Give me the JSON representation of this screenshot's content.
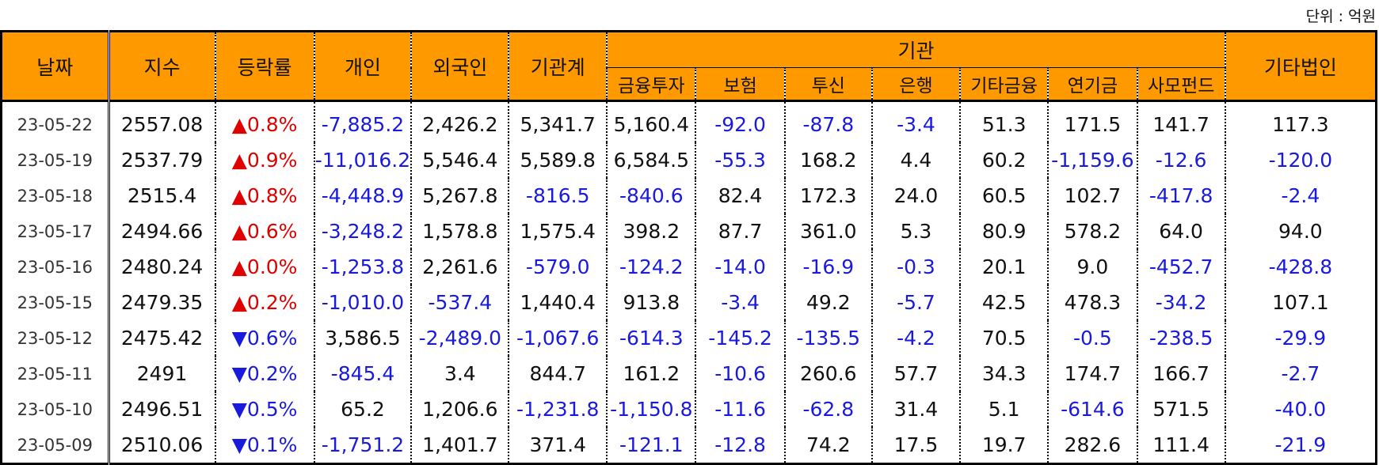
{
  "unit_label": "단위 : 억원",
  "headers": {
    "date": "날짜",
    "index": "지수",
    "change": "등락률",
    "individual": "개인",
    "foreign": "외국인",
    "inst_total": "기관계",
    "institution_group": "기관",
    "institution_sub": [
      "금융투자",
      "보험",
      "투신",
      "은행",
      "기타금융",
      "연기금",
      "사모펀드"
    ],
    "other_corp": "기타법인"
  },
  "colors": {
    "header_bg": "#ff9900",
    "up": "#e00000",
    "negative": "#1a1adc"
  },
  "rows": [
    {
      "date": "23-05-22",
      "index": "2557.08",
      "dir": "up",
      "change": "0.8%",
      "values": [
        "-7,885.2",
        "2,426.2",
        "5,341.7",
        "5,160.4",
        "-92.0",
        "-87.8",
        "-3.4",
        "51.3",
        "171.5",
        "141.7",
        "117.3"
      ]
    },
    {
      "date": "23-05-19",
      "index": "2537.79",
      "dir": "up",
      "change": "0.9%",
      "values": [
        "-11,016.2",
        "5,546.4",
        "5,589.8",
        "6,584.5",
        "-55.3",
        "168.2",
        "4.4",
        "60.2",
        "-1,159.6",
        "-12.6",
        "-120.0"
      ]
    },
    {
      "date": "23-05-18",
      "index": "2515.4",
      "dir": "up",
      "change": "0.8%",
      "values": [
        "-4,448.9",
        "5,267.8",
        "-816.5",
        "-840.6",
        "82.4",
        "172.3",
        "24.0",
        "60.5",
        "102.7",
        "-417.8",
        "-2.4"
      ]
    },
    {
      "date": "23-05-17",
      "index": "2494.66",
      "dir": "up",
      "change": "0.6%",
      "values": [
        "-3,248.2",
        "1,578.8",
        "1,575.4",
        "398.2",
        "87.7",
        "361.0",
        "5.3",
        "80.9",
        "578.2",
        "64.0",
        "94.0"
      ]
    },
    {
      "date": "23-05-16",
      "index": "2480.24",
      "dir": "up",
      "change": "0.0%",
      "values": [
        "-1,253.8",
        "2,261.6",
        "-579.0",
        "-124.2",
        "-14.0",
        "-16.9",
        "-0.3",
        "20.1",
        "9.0",
        "-452.7",
        "-428.8"
      ]
    },
    {
      "date": "23-05-15",
      "index": "2479.35",
      "dir": "up",
      "change": "0.2%",
      "values": [
        "-1,010.0",
        "-537.4",
        "1,440.4",
        "913.8",
        "-3.4",
        "49.2",
        "-5.7",
        "42.5",
        "478.3",
        "-34.2",
        "107.1"
      ]
    },
    {
      "date": "23-05-12",
      "index": "2475.42",
      "dir": "down",
      "change": "0.6%",
      "values": [
        "3,586.5",
        "-2,489.0",
        "-1,067.6",
        "-614.3",
        "-145.2",
        "-135.5",
        "-4.2",
        "70.5",
        "-0.5",
        "-238.5",
        "-29.9"
      ]
    },
    {
      "date": "23-05-11",
      "index": "2491",
      "dir": "down",
      "change": "0.2%",
      "values": [
        "-845.4",
        "3.4",
        "844.7",
        "161.2",
        "-10.6",
        "260.6",
        "57.7",
        "34.3",
        "174.7",
        "166.7",
        "-2.7"
      ]
    },
    {
      "date": "23-05-10",
      "index": "2496.51",
      "dir": "down",
      "change": "0.5%",
      "values": [
        "65.2",
        "1,206.6",
        "-1,231.8",
        "-1,150.8",
        "-11.6",
        "-62.8",
        "31.4",
        "5.1",
        "-614.6",
        "571.5",
        "-40.0"
      ]
    },
    {
      "date": "23-05-09",
      "index": "2510.06",
      "dir": "down",
      "change": "0.1%",
      "values": [
        "-1,751.2",
        "1,401.7",
        "371.4",
        "-121.1",
        "-12.8",
        "74.2",
        "17.5",
        "19.7",
        "282.6",
        "111.4",
        "-21.9"
      ]
    }
  ]
}
